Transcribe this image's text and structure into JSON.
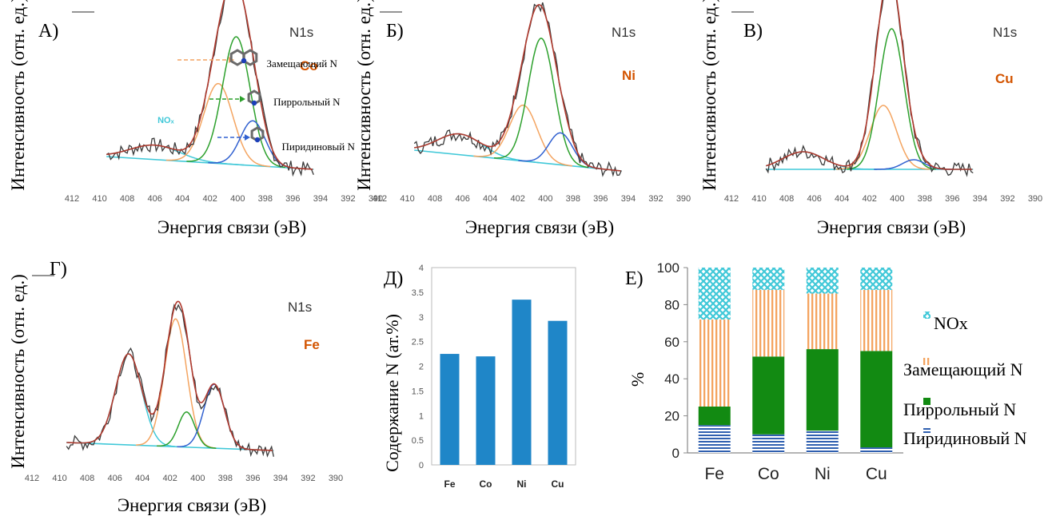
{
  "colors": {
    "raw": "#3a3a3a",
    "envelope": "#b03a2e",
    "substitutional": "#f4a460",
    "pyrrolic": "#2ca02c",
    "pyridinic": "#3060d0",
    "nox": "#40c8d8",
    "background": "#40c8d8",
    "bars": "#1f86c8",
    "metal_label": "#d35400"
  },
  "chart_data": [
    {
      "type": "line",
      "panel": "А)",
      "spectrum": "N1s",
      "metal": "Co",
      "xlabel": "Энергия связи (эВ)",
      "ylabel": "Интенсивность (отн. ед.)",
      "xlim": [
        412,
        390
      ],
      "xticks": [
        412,
        410,
        408,
        406,
        404,
        402,
        400,
        398,
        396,
        394,
        392,
        390
      ],
      "ylim": [
        0,
        100
      ],
      "background": {
        "start": [
          409.5,
          12
        ],
        "end": [
          394.5,
          4
        ]
      },
      "peaks": [
        {
          "component": "nox",
          "center": 406.0,
          "height": 9,
          "width": 1.8
        },
        {
          "component": "substitutional",
          "center": 401.4,
          "height": 50,
          "width": 1.05
        },
        {
          "component": "pyrrolic",
          "center": 400.1,
          "height": 80,
          "width": 1.0
        },
        {
          "component": "pyridinic",
          "center": 398.9,
          "height": 28,
          "width": 0.9
        }
      ],
      "annotations": [
        {
          "text": "NOₓ",
          "x": 405.8,
          "y": 33,
          "color": "#40c8d8"
        },
        {
          "text": "Замещающий N",
          "x": 397.9,
          "y": 68,
          "color": "#000000"
        },
        {
          "text": "Пиррольный N",
          "x": 397.4,
          "y": 44,
          "color": "#000000"
        },
        {
          "text": "Пиридиновый N",
          "x": 396.8,
          "y": 16,
          "color": "#000000"
        }
      ]
    },
    {
      "type": "line",
      "panel": "Б)",
      "spectrum": "N1s",
      "metal": "Ni",
      "xlabel": "Энергия связи (эВ)",
      "ylabel": "Интенсивность (отн. ед.)",
      "xlim": [
        412,
        390
      ],
      "xticks": [
        412,
        410,
        408,
        406,
        404,
        402,
        400,
        398,
        396,
        394,
        392,
        390
      ],
      "ylim": [
        0,
        100
      ],
      "background": {
        "start": [
          409.5,
          16
        ],
        "end": [
          394.5,
          3
        ]
      },
      "peaks": [
        {
          "component": "nox",
          "center": 406.2,
          "height": 13,
          "width": 1.6
        },
        {
          "component": "substitutional",
          "center": 401.6,
          "height": 35,
          "width": 1.0
        },
        {
          "component": "pyrrolic",
          "center": 400.3,
          "height": 78,
          "width": 0.95
        },
        {
          "component": "pyridinic",
          "center": 398.9,
          "height": 20,
          "width": 0.85
        }
      ],
      "annotations": []
    },
    {
      "type": "line",
      "panel": "В)",
      "spectrum": "N1s",
      "metal": "Cu",
      "xlabel": "Энергия связи (эВ)",
      "ylabel": "Интенсивность (отн. ед.)",
      "xlim": [
        412,
        390
      ],
      "xticks": [
        412,
        410,
        408,
        406,
        404,
        402,
        400,
        398,
        396,
        394,
        392,
        390
      ],
      "ylim": [
        0,
        100
      ],
      "background": {
        "start": [
          409.5,
          4
        ],
        "end": [
          394.5,
          4
        ]
      },
      "peaks": [
        {
          "component": "nox",
          "center": 406.8,
          "height": 11,
          "width": 1.5
        },
        {
          "component": "substitutional",
          "center": 401.0,
          "height": 40,
          "width": 0.95
        },
        {
          "component": "pyrrolic",
          "center": 400.4,
          "height": 88,
          "width": 0.9
        },
        {
          "component": "pyridinic",
          "center": 398.8,
          "height": 6,
          "width": 0.8
        }
      ],
      "annotations": []
    },
    {
      "type": "line",
      "panel": "Г)",
      "spectrum": "N1s",
      "metal": "Fe",
      "xlabel": "Энергия связи (эВ)",
      "ylabel": "Интенсивность (отн. ед.)",
      "xlim": [
        412,
        390
      ],
      "xticks": [
        412,
        410,
        408,
        406,
        404,
        402,
        400,
        398,
        396,
        394,
        392,
        390
      ],
      "ylim": [
        0,
        100
      ],
      "background": {
        "start": [
          409.5,
          8
        ],
        "end": [
          394.5,
          3
        ]
      },
      "peaks": [
        {
          "component": "nox",
          "center": 405.0,
          "height": 57,
          "width": 0.95
        },
        {
          "component": "substitutional",
          "center": 401.6,
          "height": 80,
          "width": 0.8
        },
        {
          "component": "pyrrolic",
          "center": 400.8,
          "height": 22,
          "width": 0.6
        },
        {
          "component": "pyridinic",
          "center": 398.8,
          "height": 40,
          "width": 0.75
        }
      ],
      "annotations": []
    },
    {
      "type": "bar",
      "panel": "Д)",
      "categories": [
        "Fe",
        "Co",
        "Ni",
        "Cu"
      ],
      "values": [
        2.25,
        2.2,
        3.35,
        2.92
      ],
      "ylabel": "Содержание N (ат.%)",
      "ylim": [
        0,
        4
      ],
      "yticks": [
        "0",
        "0.5",
        "1",
        "1.5",
        "2",
        "2.5",
        "3",
        "3.5",
        "4"
      ]
    },
    {
      "type": "stacked-bar",
      "panel": "Е)",
      "categories": [
        "Fe",
        "Co",
        "Ni",
        "Cu"
      ],
      "ylabel": "%",
      "ylim": [
        0,
        100
      ],
      "yticks": [
        "0",
        "20",
        "40",
        "60",
        "80",
        "100"
      ],
      "series": [
        {
          "name": "Пиридиновый N",
          "component": "pyridinic",
          "values": [
            15,
            10,
            12,
            3
          ]
        },
        {
          "name": "Пиррольный N",
          "component": "pyrrolic",
          "values": [
            10,
            42,
            44,
            52
          ]
        },
        {
          "name": "Замещающий N",
          "component": "substitutional",
          "values": [
            47,
            36,
            30,
            33
          ]
        },
        {
          "name": "NOx",
          "component": "nox",
          "values": [
            28,
            12,
            14,
            12
          ]
        }
      ],
      "legend_order": [
        "NOx",
        "Замещающий N",
        "Пиррольный N",
        "Пиридиновый N"
      ],
      "legend_position": "right"
    }
  ]
}
